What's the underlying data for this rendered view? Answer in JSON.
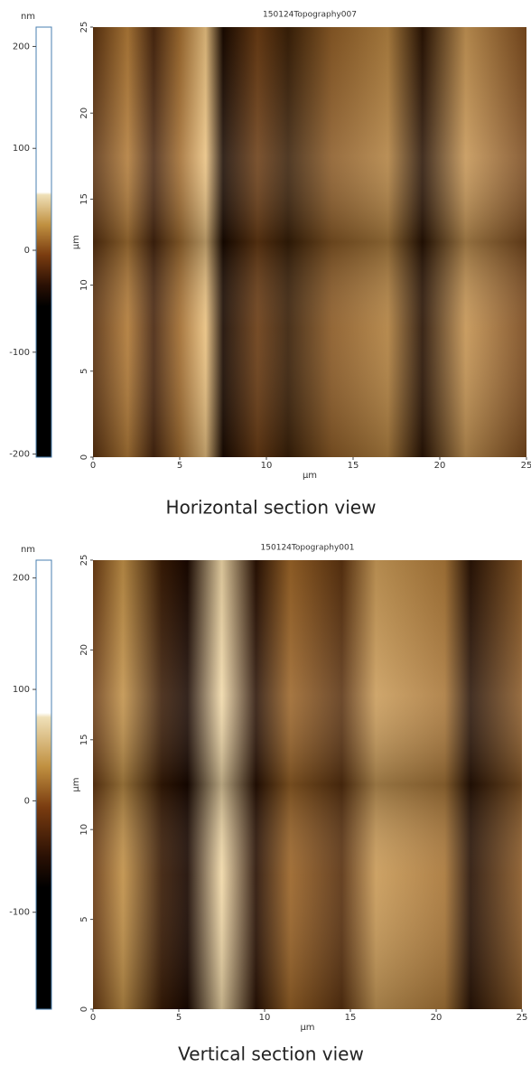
{
  "panels": [
    {
      "title": "150124Topography007",
      "unit": "nm",
      "colorbar": {
        "range": [
          -203,
          219
        ],
        "ticks": [
          200,
          100,
          0,
          -100,
          -200
        ]
      },
      "x_axis": {
        "label": "µm",
        "range": [
          0,
          25
        ],
        "ticks": [
          0,
          5,
          10,
          15,
          20,
          25
        ]
      },
      "y_axis": {
        "label": "µm",
        "range": [
          0,
          25
        ],
        "ticks": [
          0,
          5,
          10,
          15,
          20,
          25
        ]
      },
      "caption": "Horizontal section view"
    },
    {
      "title": "150124Topography001",
      "unit": "nm",
      "colorbar": {
        "range": [
          -187,
          216
        ],
        "ticks": [
          200,
          100,
          0,
          -100
        ]
      },
      "x_axis": {
        "label": "µm",
        "range": [
          0,
          25
        ],
        "ticks": [
          0,
          5,
          10,
          15,
          20,
          25
        ]
      },
      "y_axis": {
        "label": "µm",
        "range": [
          0,
          25
        ],
        "ticks": [
          0,
          5,
          10,
          15,
          20,
          25
        ]
      },
      "caption": "Vertical section view"
    }
  ]
}
